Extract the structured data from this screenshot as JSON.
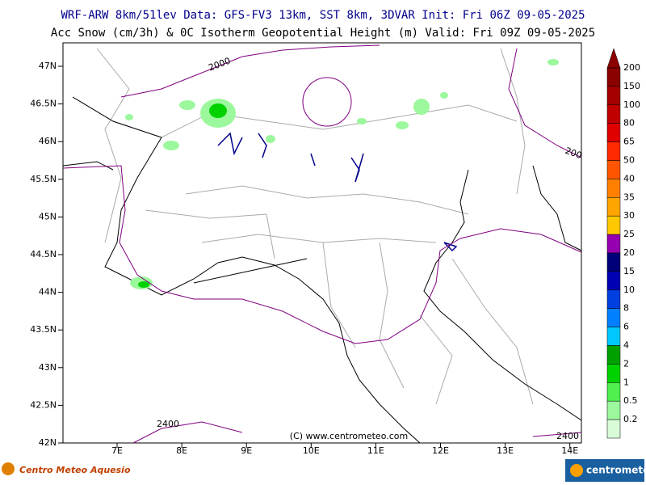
{
  "header": {
    "line1": "WRF-ARW 8km/51lev  Data: GFS-FV3 13km, SST 8km, 3DVAR  Init: Fri 06Z 09-05-2025",
    "line2": "Acc Snow (cm/3h) & 0C Isotherm Geopotential Height (m)  Valid: Fri 09Z 09-05-2025"
  },
  "map": {
    "lat_labels": [
      "47N",
      "46.5N",
      "46N",
      "45.5N",
      "45N",
      "44.5N",
      "44N",
      "43.5N",
      "43N",
      "42.5N",
      "42N"
    ],
    "lon_labels": [
      "7E",
      "8E",
      "9E",
      "10E",
      "11E",
      "12E",
      "13E",
      "14E"
    ],
    "contour_labels": [
      "2000",
      "200",
      "2400",
      "2400"
    ],
    "copyright": "(C) www.centrometeo.com"
  },
  "legend": {
    "items": [
      {
        "label": "200",
        "color": "#8b0000"
      },
      {
        "label": "150",
        "color": "#a50000"
      },
      {
        "label": "100",
        "color": "#c00000"
      },
      {
        "label": "80",
        "color": "#e00000"
      },
      {
        "label": "65",
        "color": "#ff2a00"
      },
      {
        "label": "50",
        "color": "#ff5500"
      },
      {
        "label": "40",
        "color": "#ff8000"
      },
      {
        "label": "35",
        "color": "#ffa500"
      },
      {
        "label": "30",
        "color": "#ffc800"
      },
      {
        "label": "25",
        "color": "#9400b0"
      },
      {
        "label": "20",
        "color": "#000078"
      },
      {
        "label": "15",
        "color": "#0000b4"
      },
      {
        "label": "10",
        "color": "#0040e0"
      },
      {
        "label": "8",
        "color": "#0080ff"
      },
      {
        "label": "6",
        "color": "#00c8ff"
      },
      {
        "label": "4",
        "color": "#00a000"
      },
      {
        "label": "2",
        "color": "#00d200"
      },
      {
        "label": "1",
        "color": "#50f050"
      },
      {
        "label": "0.5",
        "color": "#9cf89c"
      },
      {
        "label": "0.2",
        "color": "#d8fcd8"
      }
    ]
  },
  "footer": {
    "left_logo": "Centro Meteo Aquesio",
    "right_logo": "centrometeo"
  }
}
